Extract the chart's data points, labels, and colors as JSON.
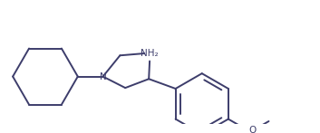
{
  "bg_color": "#ffffff",
  "line_color": "#3d3d6b",
  "line_width": 1.4,
  "font_size": 7.5,
  "label_NH2": "NH₂",
  "label_N": "N",
  "label_O": "O",
  "figsize": [
    3.53,
    1.47
  ],
  "dpi": 100
}
